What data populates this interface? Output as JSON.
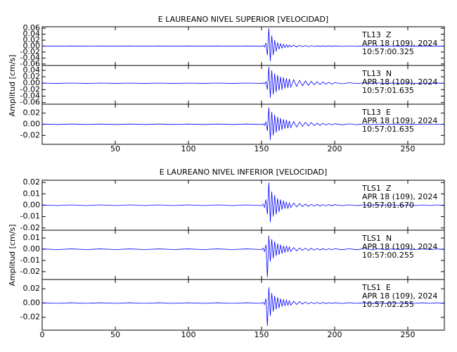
{
  "chart_data": [
    {
      "type": "line",
      "title": "E LAUREANO NIVEL SUPERIOR [VELOCIDAD]",
      "ylabel": "Amplitud [cm/s]",
      "xlim": [
        0,
        275
      ],
      "xticks": [
        50,
        100,
        150,
        200,
        250
      ],
      "x": [
        0,
        10,
        20,
        30,
        40,
        50,
        60,
        70,
        80,
        90,
        100,
        110,
        120,
        130,
        140,
        150,
        151,
        152,
        153,
        154,
        155,
        156,
        157,
        158,
        159,
        160,
        161,
        162,
        163,
        164,
        165,
        166,
        167,
        168,
        169,
        170,
        172,
        174,
        176,
        178,
        180,
        182,
        184,
        186,
        188,
        190,
        192,
        194,
        196,
        198,
        200,
        205,
        210,
        215,
        220,
        225,
        230,
        235,
        240,
        245,
        250,
        255,
        260,
        265,
        270,
        275
      ],
      "panels": [
        {
          "labels": [
            "TL13  Z",
            "APR 18 (109), 2024",
            "10:57:00.325"
          ],
          "ylim": [
            -0.065,
            0.065
          ],
          "yticks": [
            0.06,
            0.04,
            0.02,
            {
              "value": 0,
              "label": "0.00"
            },
            -0.02,
            -0.04,
            -0.06
          ],
          "series": [
            {
              "color": "#0000ff",
              "values": [
                0.0005,
                -0.0005,
                0.0005,
                -0.0005,
                0.0005,
                -0.0005,
                0.0005,
                -0.0005,
                0.0005,
                -0.0005,
                0.0005,
                -0.0005,
                0.0005,
                -0.0005,
                0.0005,
                -0.0005,
                0.002,
                -0.003,
                0.01,
                -0.03,
                0.06,
                -0.05,
                0.035,
                -0.03,
                0.02,
                -0.018,
                0.012,
                -0.01,
                0.008,
                -0.007,
                0.006,
                -0.005,
                0.005,
                -0.004,
                0.004,
                -0.003,
                0.003,
                -0.003,
                0.0025,
                -0.002,
                0.002,
                -0.002,
                0.0015,
                -0.0015,
                0.001,
                -0.001,
                0.001,
                -0.001,
                0.001,
                -0.001,
                0.001,
                -0.0008,
                0.0008,
                -0.0008,
                0.0008,
                -0.0006,
                0.0006,
                -0.0006,
                0.0006,
                -0.0005,
                0.0005,
                -0.0005,
                0.0005,
                -0.0005,
                0.0005,
                -0.0005
              ]
            }
          ]
        },
        {
          "labels": [
            "TL13  N",
            "APR 18 (109), 2024",
            "10:57:01.635"
          ],
          "ylim": [
            -0.065,
            0.055
          ],
          "yticks": [
            0.04,
            0.02,
            {
              "value": 0,
              "label": "0.00"
            },
            -0.02,
            -0.04,
            -0.06
          ],
          "series": [
            {
              "color": "#0000ff",
              "values": [
                0.0005,
                -0.0005,
                0.0005,
                -0.0005,
                0.0005,
                -0.0005,
                0.0005,
                -0.0005,
                0.0005,
                -0.0005,
                0.0005,
                -0.0005,
                0.0005,
                -0.0005,
                0.0005,
                -0.0005,
                0.001,
                -0.002,
                0.005,
                -0.02,
                0.05,
                -0.045,
                0.04,
                -0.035,
                0.03,
                -0.028,
                0.025,
                -0.022,
                0.02,
                -0.02,
                0.018,
                -0.016,
                0.015,
                -0.014,
                0.013,
                -0.012,
                0.011,
                -0.01,
                0.009,
                -0.008,
                0.007,
                -0.007,
                0.006,
                -0.005,
                0.005,
                -0.004,
                0.004,
                -0.003,
                0.003,
                -0.003,
                0.002,
                -0.002,
                0.0015,
                -0.0012,
                0.001,
                -0.001,
                0.0008,
                -0.0008,
                0.0006,
                -0.0006,
                0.0005,
                -0.0005,
                0.0004,
                -0.0004,
                0.0003,
                -0.0003
              ]
            }
          ]
        },
        {
          "labels": [
            "TL13  E",
            "APR 18 (109), 2024",
            "10:57:01.635"
          ],
          "ylim": [
            -0.036,
            0.036
          ],
          "yticks": [
            0.02,
            {
              "value": 0,
              "label": "0.00"
            },
            -0.02
          ],
          "series": [
            {
              "color": "#0000ff",
              "values": [
                0.0004,
                -0.0004,
                0.0004,
                -0.0004,
                0.0004,
                -0.0004,
                0.0004,
                -0.0004,
                0.0004,
                -0.0004,
                0.0004,
                -0.0004,
                0.0004,
                -0.0004,
                0.0004,
                -0.0004,
                0.001,
                -0.002,
                0.004,
                -0.012,
                0.03,
                -0.028,
                0.022,
                -0.02,
                0.017,
                -0.015,
                0.013,
                -0.012,
                0.011,
                -0.01,
                0.009,
                -0.008,
                0.008,
                -0.007,
                0.006,
                -0.006,
                0.005,
                -0.005,
                0.004,
                -0.004,
                0.0035,
                -0.003,
                0.003,
                -0.0025,
                0.002,
                -0.002,
                0.0018,
                -0.0015,
                0.0015,
                -0.0012,
                0.001,
                -0.001,
                0.0008,
                -0.0008,
                0.0006,
                -0.0006,
                0.0005,
                -0.0005,
                0.0004,
                -0.0004,
                0.0004,
                -0.0004,
                0.0003,
                -0.0003,
                0.0003,
                -0.0003
              ]
            }
          ]
        }
      ]
    },
    {
      "type": "line",
      "title": "E LAUREANO NIVEL INFERIOR [VELOCIDAD]",
      "ylabel": "Amplitud [cm/s]",
      "xlim": [
        0,
        275
      ],
      "xticks": [
        0,
        50,
        100,
        150,
        200,
        250
      ],
      "x": [
        0,
        10,
        20,
        30,
        40,
        50,
        60,
        70,
        80,
        90,
        100,
        110,
        120,
        130,
        140,
        150,
        151,
        152,
        153,
        154,
        155,
        156,
        157,
        158,
        159,
        160,
        161,
        162,
        163,
        164,
        165,
        166,
        167,
        168,
        169,
        170,
        172,
        174,
        176,
        178,
        180,
        182,
        184,
        186,
        188,
        190,
        192,
        194,
        196,
        198,
        200,
        205,
        210,
        215,
        220,
        225,
        230,
        235,
        240,
        245,
        250,
        255,
        260,
        265,
        270,
        275
      ],
      "panels": [
        {
          "labels": [
            "TLS1  Z",
            "APR 18 (109), 2024",
            "10:57:01.670"
          ],
          "ylim": [
            -0.022,
            0.022
          ],
          "yticks": [
            0.02,
            0.01,
            {
              "value": 0,
              "label": "0.00"
            },
            -0.01,
            -0.02
          ],
          "series": [
            {
              "color": "#0000ff",
              "values": [
                0.0003,
                -0.0003,
                0.0003,
                -0.0003,
                0.0003,
                -0.0003,
                0.0003,
                -0.0003,
                0.0003,
                -0.0003,
                0.0003,
                -0.0003,
                0.0003,
                -0.0003,
                0.0003,
                -0.0003,
                0.001,
                -0.002,
                0.005,
                -0.008,
                0.02,
                -0.015,
                0.012,
                -0.01,
                0.009,
                -0.008,
                0.006,
                -0.006,
                0.005,
                -0.004,
                0.004,
                -0.003,
                0.003,
                -0.003,
                0.002,
                -0.002,
                0.002,
                -0.0015,
                0.0015,
                -0.0012,
                0.001,
                -0.001,
                0.0008,
                -0.0008,
                0.0007,
                -0.0007,
                0.0006,
                -0.0006,
                0.0005,
                -0.0005,
                0.0005,
                -0.0004,
                0.0004,
                -0.0004,
                0.0004,
                -0.0003,
                0.0003,
                -0.0003,
                0.0003,
                -0.0003,
                0.0003,
                -0.0003,
                0.0003,
                -0.0003,
                0.0003,
                -0.0003
              ]
            }
          ]
        },
        {
          "labels": [
            "TLS1  N",
            "APR 18 (109), 2024",
            "10:57:00.255"
          ],
          "ylim": [
            -0.027,
            0.017
          ],
          "yticks": [
            0.01,
            {
              "value": 0,
              "label": "0.00"
            },
            -0.01,
            -0.02
          ],
          "series": [
            {
              "color": "#0000ff",
              "values": [
                0.0003,
                -0.0003,
                0.0003,
                -0.0003,
                0.0003,
                -0.0003,
                0.0003,
                -0.0003,
                0.0003,
                -0.0003,
                0.0003,
                -0.0003,
                0.0003,
                -0.0003,
                0.0003,
                -0.0003,
                0.001,
                -0.002,
                0.004,
                -0.025,
                0.012,
                -0.011,
                0.009,
                -0.008,
                0.007,
                -0.006,
                0.005,
                -0.005,
                0.004,
                -0.004,
                0.003,
                -0.003,
                0.003,
                -0.002,
                0.002,
                -0.002,
                0.0015,
                -0.0015,
                0.0012,
                -0.001,
                0.001,
                -0.001,
                0.0008,
                -0.0008,
                0.0007,
                -0.0007,
                0.0006,
                -0.0006,
                0.0005,
                -0.0005,
                0.0005,
                -0.0004,
                0.0004,
                -0.0004,
                0.0004,
                -0.0003,
                0.0003,
                -0.0003,
                0.0003,
                -0.0003,
                0.0003,
                -0.0003,
                0.0003,
                -0.0003,
                0.0003,
                -0.0003
              ]
            }
          ]
        },
        {
          "labels": [
            "TLS1  E",
            "APR 18 (109), 2024",
            "10:57:02.255"
          ],
          "ylim": [
            -0.038,
            0.033
          ],
          "yticks": [
            0.02,
            {
              "value": 0,
              "label": "0.00"
            },
            -0.02
          ],
          "series": [
            {
              "color": "#0000ff",
              "values": [
                0.0004,
                -0.0004,
                0.0004,
                -0.0004,
                0.0004,
                -0.0004,
                0.0004,
                -0.0004,
                0.0004,
                -0.0004,
                0.0004,
                -0.0004,
                0.0004,
                -0.0004,
                0.0004,
                -0.0004,
                0.001,
                -0.002,
                0.006,
                -0.032,
                0.022,
                -0.018,
                0.014,
                -0.012,
                0.01,
                -0.009,
                0.008,
                -0.007,
                0.006,
                -0.005,
                0.005,
                -0.004,
                0.004,
                -0.003,
                0.003,
                -0.003,
                0.0025,
                -0.002,
                0.002,
                -0.0015,
                0.0015,
                -0.0012,
                0.001,
                -0.001,
                0.0009,
                -0.0008,
                0.0008,
                -0.0007,
                0.0006,
                -0.0006,
                0.0005,
                -0.0005,
                0.0005,
                -0.0004,
                0.0004,
                -0.0004,
                0.0004,
                -0.0004,
                0.0004,
                -0.0004,
                0.0004,
                -0.0004,
                0.0004,
                -0.0004,
                0.0004,
                -0.0004
              ]
            }
          ]
        }
      ]
    }
  ]
}
